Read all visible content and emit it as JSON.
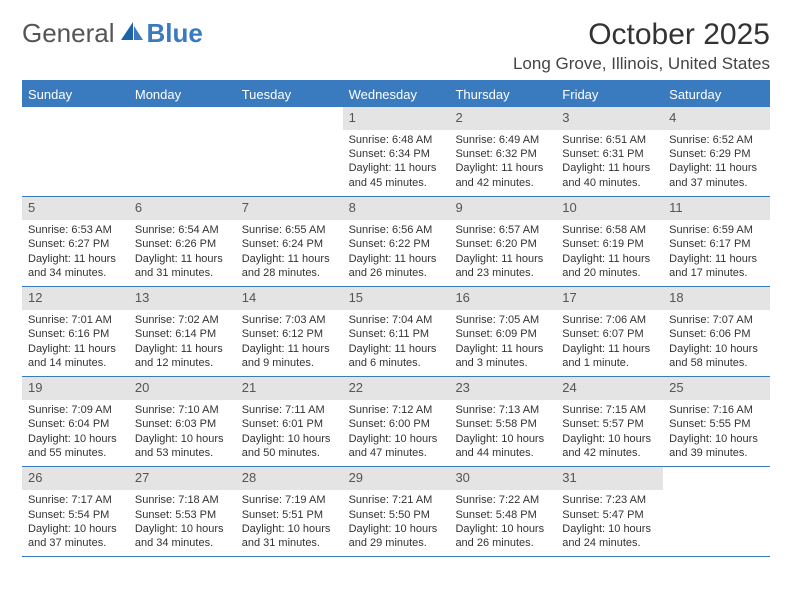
{
  "brand": {
    "part1": "General",
    "part2": "Blue"
  },
  "title": "October 2025",
  "location": "Long Grove, Illinois, United States",
  "colors": {
    "accent": "#3a7bbf",
    "daynum_bg": "#e4e4e4",
    "text": "#333333",
    "bg": "#ffffff"
  },
  "dow": [
    "Sunday",
    "Monday",
    "Tuesday",
    "Wednesday",
    "Thursday",
    "Friday",
    "Saturday"
  ],
  "weeks": [
    [
      {
        "empty": true
      },
      {
        "empty": true
      },
      {
        "empty": true
      },
      {
        "n": "1",
        "sunrise": "Sunrise: 6:48 AM",
        "sunset": "Sunset: 6:34 PM",
        "day1": "Daylight: 11 hours",
        "day2": "and 45 minutes."
      },
      {
        "n": "2",
        "sunrise": "Sunrise: 6:49 AM",
        "sunset": "Sunset: 6:32 PM",
        "day1": "Daylight: 11 hours",
        "day2": "and 42 minutes."
      },
      {
        "n": "3",
        "sunrise": "Sunrise: 6:51 AM",
        "sunset": "Sunset: 6:31 PM",
        "day1": "Daylight: 11 hours",
        "day2": "and 40 minutes."
      },
      {
        "n": "4",
        "sunrise": "Sunrise: 6:52 AM",
        "sunset": "Sunset: 6:29 PM",
        "day1": "Daylight: 11 hours",
        "day2": "and 37 minutes."
      }
    ],
    [
      {
        "n": "5",
        "sunrise": "Sunrise: 6:53 AM",
        "sunset": "Sunset: 6:27 PM",
        "day1": "Daylight: 11 hours",
        "day2": "and 34 minutes."
      },
      {
        "n": "6",
        "sunrise": "Sunrise: 6:54 AM",
        "sunset": "Sunset: 6:26 PM",
        "day1": "Daylight: 11 hours",
        "day2": "and 31 minutes."
      },
      {
        "n": "7",
        "sunrise": "Sunrise: 6:55 AM",
        "sunset": "Sunset: 6:24 PM",
        "day1": "Daylight: 11 hours",
        "day2": "and 28 minutes."
      },
      {
        "n": "8",
        "sunrise": "Sunrise: 6:56 AM",
        "sunset": "Sunset: 6:22 PM",
        "day1": "Daylight: 11 hours",
        "day2": "and 26 minutes."
      },
      {
        "n": "9",
        "sunrise": "Sunrise: 6:57 AM",
        "sunset": "Sunset: 6:20 PM",
        "day1": "Daylight: 11 hours",
        "day2": "and 23 minutes."
      },
      {
        "n": "10",
        "sunrise": "Sunrise: 6:58 AM",
        "sunset": "Sunset: 6:19 PM",
        "day1": "Daylight: 11 hours",
        "day2": "and 20 minutes."
      },
      {
        "n": "11",
        "sunrise": "Sunrise: 6:59 AM",
        "sunset": "Sunset: 6:17 PM",
        "day1": "Daylight: 11 hours",
        "day2": "and 17 minutes."
      }
    ],
    [
      {
        "n": "12",
        "sunrise": "Sunrise: 7:01 AM",
        "sunset": "Sunset: 6:16 PM",
        "day1": "Daylight: 11 hours",
        "day2": "and 14 minutes."
      },
      {
        "n": "13",
        "sunrise": "Sunrise: 7:02 AM",
        "sunset": "Sunset: 6:14 PM",
        "day1": "Daylight: 11 hours",
        "day2": "and 12 minutes."
      },
      {
        "n": "14",
        "sunrise": "Sunrise: 7:03 AM",
        "sunset": "Sunset: 6:12 PM",
        "day1": "Daylight: 11 hours",
        "day2": "and 9 minutes."
      },
      {
        "n": "15",
        "sunrise": "Sunrise: 7:04 AM",
        "sunset": "Sunset: 6:11 PM",
        "day1": "Daylight: 11 hours",
        "day2": "and 6 minutes."
      },
      {
        "n": "16",
        "sunrise": "Sunrise: 7:05 AM",
        "sunset": "Sunset: 6:09 PM",
        "day1": "Daylight: 11 hours",
        "day2": "and 3 minutes."
      },
      {
        "n": "17",
        "sunrise": "Sunrise: 7:06 AM",
        "sunset": "Sunset: 6:07 PM",
        "day1": "Daylight: 11 hours",
        "day2": "and 1 minute."
      },
      {
        "n": "18",
        "sunrise": "Sunrise: 7:07 AM",
        "sunset": "Sunset: 6:06 PM",
        "day1": "Daylight: 10 hours",
        "day2": "and 58 minutes."
      }
    ],
    [
      {
        "n": "19",
        "sunrise": "Sunrise: 7:09 AM",
        "sunset": "Sunset: 6:04 PM",
        "day1": "Daylight: 10 hours",
        "day2": "and 55 minutes."
      },
      {
        "n": "20",
        "sunrise": "Sunrise: 7:10 AM",
        "sunset": "Sunset: 6:03 PM",
        "day1": "Daylight: 10 hours",
        "day2": "and 53 minutes."
      },
      {
        "n": "21",
        "sunrise": "Sunrise: 7:11 AM",
        "sunset": "Sunset: 6:01 PM",
        "day1": "Daylight: 10 hours",
        "day2": "and 50 minutes."
      },
      {
        "n": "22",
        "sunrise": "Sunrise: 7:12 AM",
        "sunset": "Sunset: 6:00 PM",
        "day1": "Daylight: 10 hours",
        "day2": "and 47 minutes."
      },
      {
        "n": "23",
        "sunrise": "Sunrise: 7:13 AM",
        "sunset": "Sunset: 5:58 PM",
        "day1": "Daylight: 10 hours",
        "day2": "and 44 minutes."
      },
      {
        "n": "24",
        "sunrise": "Sunrise: 7:15 AM",
        "sunset": "Sunset: 5:57 PM",
        "day1": "Daylight: 10 hours",
        "day2": "and 42 minutes."
      },
      {
        "n": "25",
        "sunrise": "Sunrise: 7:16 AM",
        "sunset": "Sunset: 5:55 PM",
        "day1": "Daylight: 10 hours",
        "day2": "and 39 minutes."
      }
    ],
    [
      {
        "n": "26",
        "sunrise": "Sunrise: 7:17 AM",
        "sunset": "Sunset: 5:54 PM",
        "day1": "Daylight: 10 hours",
        "day2": "and 37 minutes."
      },
      {
        "n": "27",
        "sunrise": "Sunrise: 7:18 AM",
        "sunset": "Sunset: 5:53 PM",
        "day1": "Daylight: 10 hours",
        "day2": "and 34 minutes."
      },
      {
        "n": "28",
        "sunrise": "Sunrise: 7:19 AM",
        "sunset": "Sunset: 5:51 PM",
        "day1": "Daylight: 10 hours",
        "day2": "and 31 minutes."
      },
      {
        "n": "29",
        "sunrise": "Sunrise: 7:21 AM",
        "sunset": "Sunset: 5:50 PM",
        "day1": "Daylight: 10 hours",
        "day2": "and 29 minutes."
      },
      {
        "n": "30",
        "sunrise": "Sunrise: 7:22 AM",
        "sunset": "Sunset: 5:48 PM",
        "day1": "Daylight: 10 hours",
        "day2": "and 26 minutes."
      },
      {
        "n": "31",
        "sunrise": "Sunrise: 7:23 AM",
        "sunset": "Sunset: 5:47 PM",
        "day1": "Daylight: 10 hours",
        "day2": "and 24 minutes."
      },
      {
        "empty": true
      }
    ]
  ]
}
